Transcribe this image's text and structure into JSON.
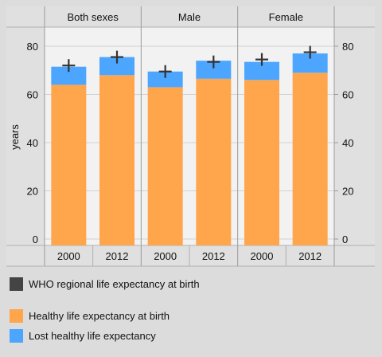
{
  "chart_data": {
    "type": "bar",
    "ylabel": "years",
    "ylim": [
      0,
      85
    ],
    "yticks": [
      0,
      20,
      40,
      60,
      80
    ],
    "panels": [
      "Both sexes",
      "Male",
      "Female"
    ],
    "x": [
      "2000",
      "2012"
    ],
    "series": [
      {
        "name": "Healthy life expectancy at birth",
        "color": "#ffa64d",
        "values": [
          [
            64,
            68
          ],
          [
            63,
            66.5
          ],
          [
            66,
            69
          ]
        ]
      },
      {
        "name": "Lost healthy life expectancy",
        "color": "#4ca6ff",
        "values": [
          [
            7.5,
            7.5
          ],
          [
            6.5,
            7.5
          ],
          [
            7.5,
            8
          ]
        ]
      }
    ],
    "markers": {
      "name": "WHO regional life expectancy at birth",
      "color": "#444444",
      "values": [
        [
          72,
          75.5
        ],
        [
          69.5,
          73.5
        ],
        [
          74.5,
          77.5
        ]
      ]
    }
  },
  "legend": [
    {
      "label": "WHO regional life expectancy at birth",
      "color": "#444444"
    },
    {
      "label": "Healthy life expectancy at birth",
      "color": "#ffa64d"
    },
    {
      "label": "Lost healthy life expectancy",
      "color": "#4ca6ff"
    }
  ]
}
